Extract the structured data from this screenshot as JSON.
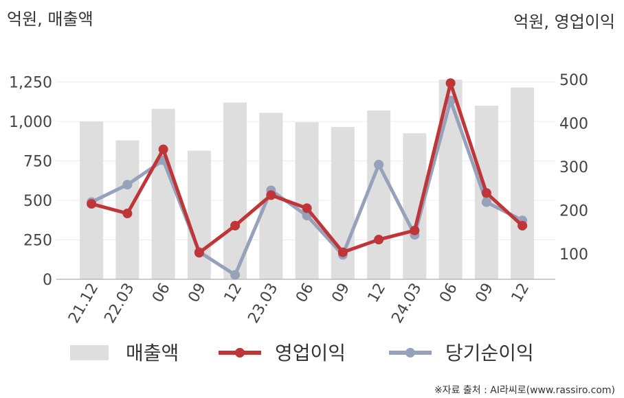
{
  "chart_data": {
    "type": "bar",
    "left_unit_label": "억원, 매출액",
    "right_unit_label": "억원, 영업이익",
    "categories": [
      "21.12",
      "22.03",
      "06",
      "09",
      "12",
      "23.03",
      "06",
      "09",
      "12",
      "24.03",
      "06",
      "09",
      "12"
    ],
    "left_axis": {
      "ticks": [
        "0",
        "250",
        "500",
        "750",
        "1,000",
        "1,250"
      ],
      "range": [
        0,
        1250
      ]
    },
    "right_axis": {
      "ticks": [
        "100",
        "200",
        "300",
        "400",
        "500"
      ],
      "range": [
        42,
        500
      ]
    },
    "series": [
      {
        "name": "매출액",
        "type": "bar",
        "axis": "left",
        "color": "#dedede",
        "values": [
          1000,
          880,
          1080,
          815,
          1120,
          1055,
          995,
          965,
          1070,
          925,
          1265,
          1100,
          1215
        ]
      },
      {
        "name": "영업이익",
        "type": "line",
        "axis": "right",
        "color": "#c03538",
        "values": [
          215,
          193,
          340,
          103,
          165,
          235,
          205,
          104,
          133,
          154,
          492,
          240,
          165
        ]
      },
      {
        "name": "당기순이익",
        "type": "line",
        "axis": "right",
        "color": "#96a1ba",
        "values": [
          219,
          259,
          315,
          105,
          52,
          246,
          188,
          98,
          305,
          144,
          452,
          219,
          177
        ]
      }
    ],
    "legend": {
      "position": "bottom"
    },
    "grid": true
  },
  "footer": {
    "source": "※자료 출처 : AI라씨로(www.rassiro.com)"
  }
}
